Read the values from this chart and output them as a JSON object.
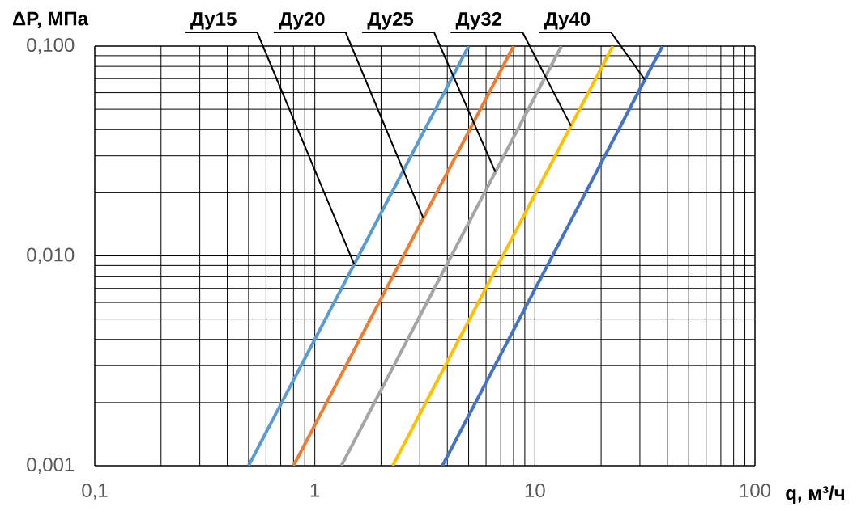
{
  "chart_data": {
    "type": "line",
    "xlabel": "q, м³/ч",
    "ylabel": "ΔP, МПа",
    "log": "xy",
    "grid": true,
    "marker": "none",
    "line_style": "solid",
    "xlim": [
      0.1,
      100
    ],
    "ylim": [
      0.001,
      0.1
    ],
    "xticks": [
      {
        "value": 0.1,
        "label": "0,1"
      },
      1,
      10,
      100
    ],
    "yticks": [
      {
        "value": 0.001,
        "label": "0,001"
      },
      {
        "value": 0.01,
        "label": "0,010"
      },
      {
        "value": 0.1,
        "label": "0,100"
      }
    ],
    "series": [
      {
        "name": "Ду15",
        "color": "#5b9bd5",
        "x": [
          0.5,
          5
        ],
        "values": [
          0.001,
          0.1
        ]
      },
      {
        "name": "Ду20",
        "color": "#ed7d31",
        "x": [
          0.8,
          8
        ],
        "values": [
          0.001,
          0.1
        ]
      },
      {
        "name": "Ду25",
        "color": "#a5a5a5",
        "x": [
          1.32,
          13.2
        ],
        "values": [
          0.001,
          0.1
        ]
      },
      {
        "name": "Ду32",
        "color": "#ffc000",
        "x": [
          2.26,
          22.6
        ],
        "values": [
          0.001,
          0.1
        ]
      },
      {
        "name": "Ду40",
        "color": "#4472c4",
        "x": [
          3.8,
          38
        ],
        "values": [
          0.001,
          0.1
        ]
      }
    ]
  }
}
